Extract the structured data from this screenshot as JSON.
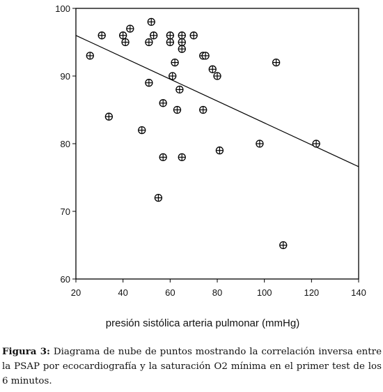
{
  "chart_data": {
    "type": "scatter",
    "xlabel": "presión sistólica arteria pulmonar (mmHg)",
    "ylabel": "",
    "xlim": [
      20,
      140
    ],
    "ylim": [
      60,
      100
    ],
    "xticks": [
      "20",
      "40",
      "60",
      "80",
      "100",
      "120",
      "140"
    ],
    "yticks": [
      "60",
      "70",
      "80",
      "90",
      "100"
    ],
    "grid": false,
    "marker": "circle-plus",
    "points": [
      {
        "x": 26,
        "y": 93
      },
      {
        "x": 31,
        "y": 96
      },
      {
        "x": 34,
        "y": 84
      },
      {
        "x": 40,
        "y": 96
      },
      {
        "x": 41,
        "y": 95
      },
      {
        "x": 43,
        "y": 97
      },
      {
        "x": 48,
        "y": 82
      },
      {
        "x": 51,
        "y": 95
      },
      {
        "x": 51,
        "y": 89
      },
      {
        "x": 52,
        "y": 98
      },
      {
        "x": 53,
        "y": 96
      },
      {
        "x": 55,
        "y": 72
      },
      {
        "x": 57,
        "y": 86
      },
      {
        "x": 57,
        "y": 78
      },
      {
        "x": 60,
        "y": 96
      },
      {
        "x": 60,
        "y": 95
      },
      {
        "x": 61,
        "y": 90
      },
      {
        "x": 62,
        "y": 92
      },
      {
        "x": 63,
        "y": 85
      },
      {
        "x": 64,
        "y": 88
      },
      {
        "x": 65,
        "y": 96
      },
      {
        "x": 65,
        "y": 95
      },
      {
        "x": 65,
        "y": 94
      },
      {
        "x": 65,
        "y": 78
      },
      {
        "x": 70,
        "y": 96
      },
      {
        "x": 74,
        "y": 93
      },
      {
        "x": 75,
        "y": 93
      },
      {
        "x": 74,
        "y": 85
      },
      {
        "x": 78,
        "y": 91
      },
      {
        "x": 80,
        "y": 90
      },
      {
        "x": 81,
        "y": 79
      },
      {
        "x": 98,
        "y": 80
      },
      {
        "x": 105,
        "y": 92
      },
      {
        "x": 108,
        "y": 65
      },
      {
        "x": 122,
        "y": 80
      }
    ],
    "fit_line": {
      "x": [
        20,
        140
      ],
      "y": [
        96.0,
        76.6
      ]
    }
  },
  "caption": {
    "label": "Figura 3:",
    "text": "Diagrama de nube de puntos mostrando la correlación inversa entre la PSAP por ecocardiografía y la saturación O2 mínima en el primer test de los 6 minutos."
  }
}
